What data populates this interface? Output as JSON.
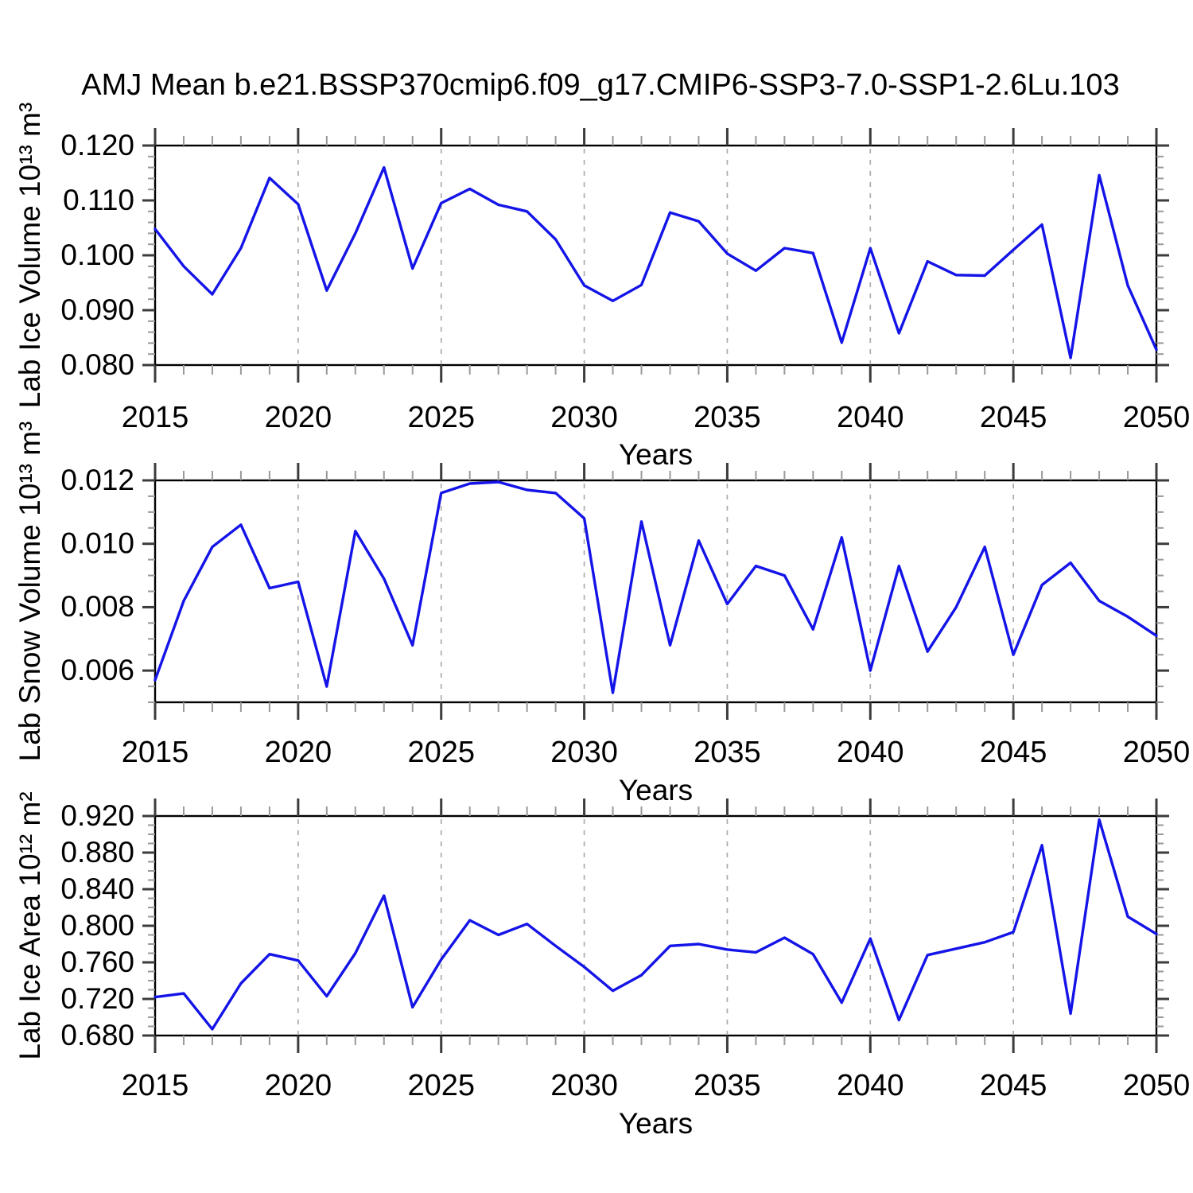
{
  "page": {
    "title": "AMJ Mean b.e21.BSSP370cmip6.f09_g17.CMIP6-SSP3-7.0-SSP1-2.6Lu.103"
  },
  "colors": {
    "line": "#1414e8",
    "frame": "#000000",
    "major_tick": "#3c3c3c",
    "minor_tick": "#999999",
    "gridline": "#ababab",
    "text": "#000000"
  },
  "chart_data": [
    {
      "type": "line",
      "title": "",
      "ylabel": "Lab Ice Volume 10¹³ m³",
      "xlabel": "Years",
      "x": [
        2015,
        2016,
        2017,
        2018,
        2019,
        2020,
        2021,
        2022,
        2023,
        2024,
        2025,
        2026,
        2027,
        2028,
        2029,
        2030,
        2031,
        2032,
        2033,
        2034,
        2035,
        2036,
        2037,
        2038,
        2039,
        2040,
        2041,
        2042,
        2043,
        2044,
        2045,
        2046,
        2047,
        2048,
        2049,
        2050
      ],
      "values": [
        0.1048,
        0.098,
        0.0929,
        0.1013,
        0.1141,
        0.1093,
        0.0936,
        0.104,
        0.116,
        0.0976,
        0.1095,
        0.1121,
        0.1092,
        0.108,
        0.1029,
        0.0945,
        0.0917,
        0.0946,
        0.1078,
        0.1062,
        0.1003,
        0.0972,
        0.1013,
        0.1004,
        0.0841,
        0.1013,
        0.0858,
        0.0989,
        0.0964,
        0.0963,
        0.101,
        0.1056,
        0.0813,
        0.1146,
        0.0945,
        0.0828
      ],
      "xlim": [
        2015,
        2050
      ],
      "ylim": [
        0.08,
        0.12
      ],
      "xticks": [
        2015,
        2020,
        2025,
        2030,
        2035,
        2040,
        2045,
        2050
      ],
      "xtick_labels": [
        "2015",
        "2020",
        "2025",
        "2030",
        "2035",
        "2040",
        "2045",
        "2050"
      ],
      "x_minor_step": 1,
      "yticks": [
        0.08,
        0.09,
        0.1,
        0.11,
        0.12
      ],
      "ytick_labels": [
        "0.080",
        "0.090",
        "0.100",
        "0.110",
        "0.120"
      ],
      "y_minor_step": 0.002,
      "grid_x": [
        2020,
        2025,
        2030,
        2035,
        2040,
        2045
      ],
      "grid_y": "off",
      "legend": "none"
    },
    {
      "type": "line",
      "title": "",
      "ylabel": "Lab Snow Volume 10¹³ m³",
      "xlabel": "Years",
      "x": [
        2015,
        2016,
        2017,
        2018,
        2019,
        2020,
        2021,
        2022,
        2023,
        2024,
        2025,
        2026,
        2027,
        2028,
        2029,
        2030,
        2031,
        2032,
        2033,
        2034,
        2035,
        2036,
        2037,
        2038,
        2039,
        2040,
        2041,
        2042,
        2043,
        2044,
        2045,
        2046,
        2047,
        2048,
        2049,
        2050
      ],
      "values": [
        0.0057,
        0.0082,
        0.0099,
        0.0106,
        0.0086,
        0.0088,
        0.0055,
        0.0104,
        0.0089,
        0.0068,
        0.0116,
        0.0119,
        0.01195,
        0.0117,
        0.0116,
        0.0108,
        0.0053,
        0.0107,
        0.0068,
        0.0101,
        0.0081,
        0.0093,
        0.009,
        0.0073,
        0.0102,
        0.006,
        0.0093,
        0.0066,
        0.008,
        0.0099,
        0.0065,
        0.0087,
        0.0094,
        0.0082,
        0.0077,
        0.0071
      ],
      "xlim": [
        2015,
        2050
      ],
      "ylim": [
        0.005,
        0.012
      ],
      "xticks": [
        2015,
        2020,
        2025,
        2030,
        2035,
        2040,
        2045,
        2050
      ],
      "xtick_labels": [
        "2015",
        "2020",
        "2025",
        "2030",
        "2035",
        "2040",
        "2045",
        "2050"
      ],
      "x_minor_step": 1,
      "yticks": [
        0.006,
        0.008,
        0.01,
        0.012
      ],
      "ytick_labels": [
        "0.006",
        "0.008",
        "0.010",
        "0.012"
      ],
      "y_minor_step": 0.0005,
      "grid_x": [
        2020,
        2025,
        2030,
        2035,
        2040,
        2045
      ],
      "grid_y": "off",
      "legend": "none"
    },
    {
      "type": "line",
      "title": "",
      "ylabel": "Lab Ice Area 10¹² m²",
      "xlabel": "Years",
      "x": [
        2015,
        2016,
        2017,
        2018,
        2019,
        2020,
        2021,
        2022,
        2023,
        2024,
        2025,
        2026,
        2027,
        2028,
        2029,
        2030,
        2031,
        2032,
        2033,
        2034,
        2035,
        2036,
        2037,
        2038,
        2039,
        2040,
        2041,
        2042,
        2043,
        2044,
        2045,
        2046,
        2047,
        2048,
        2049,
        2050
      ],
      "values": [
        0.722,
        0.726,
        0.687,
        0.737,
        0.769,
        0.762,
        0.723,
        0.77,
        0.833,
        0.711,
        0.763,
        0.806,
        0.79,
        0.802,
        0.778,
        0.755,
        0.729,
        0.746,
        0.778,
        0.78,
        0.774,
        0.771,
        0.787,
        0.769,
        0.716,
        0.786,
        0.697,
        0.768,
        0.775,
        0.782,
        0.793,
        0.888,
        0.704,
        0.916,
        0.81,
        0.791
      ],
      "xlim": [
        2015,
        2050
      ],
      "ylim": [
        0.68,
        0.92
      ],
      "xticks": [
        2015,
        2020,
        2025,
        2030,
        2035,
        2040,
        2045,
        2050
      ],
      "xtick_labels": [
        "2015",
        "2020",
        "2025",
        "2030",
        "2035",
        "2040",
        "2045",
        "2050"
      ],
      "x_minor_step": 1,
      "yticks": [
        0.68,
        0.72,
        0.76,
        0.8,
        0.84,
        0.88,
        0.92
      ],
      "ytick_labels": [
        "0.680",
        "0.720",
        "0.760",
        "0.800",
        "0.840",
        "0.880",
        "0.920"
      ],
      "y_minor_step": 0.01,
      "grid_x": [
        2020,
        2025,
        2030,
        2035,
        2040,
        2045
      ],
      "grid_y": "off",
      "legend": "none"
    }
  ]
}
